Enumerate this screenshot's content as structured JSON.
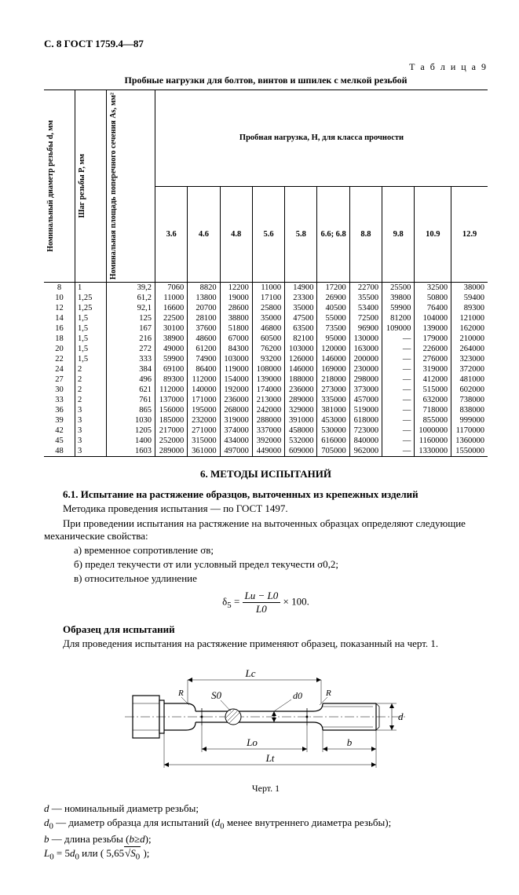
{
  "header": "С. 8 ГОСТ 1759.4—87",
  "table": {
    "label": "Т а б л и ц а  9",
    "caption": "Пробные нагрузки для болтов, винтов и шпилек с мелкой резьбой",
    "rot_headers": [
      "Номинальный диаметр резьбы d, мм",
      "Шаг резьбы P, мм",
      "Номинальная площадь поперечного сечения As, мм²"
    ],
    "group_header": "Пробная нагрузка, Н, для класса прочности",
    "classes": [
      "3.6",
      "4.6",
      "4.8",
      "5.6",
      "5.8",
      "6.6; 6.8",
      "8.8",
      "9.8",
      "10.9",
      "12.9"
    ],
    "rows": [
      {
        "d": "8",
        "p": "1",
        "a": "39,2",
        "v": [
          "7060",
          "8820",
          "12200",
          "11000",
          "14900",
          "17200",
          "22700",
          "25500",
          "32500",
          "38000"
        ]
      },
      {
        "d": "10",
        "p": "1,25",
        "a": "61,2",
        "v": [
          "11000",
          "13800",
          "19000",
          "17100",
          "23300",
          "26900",
          "35500",
          "39800",
          "50800",
          "59400"
        ]
      },
      {
        "d": "12",
        "p": "1,25",
        "a": "92,1",
        "v": [
          "16600",
          "20700",
          "28600",
          "25800",
          "35000",
          "40500",
          "53400",
          "59900",
          "76400",
          "89300"
        ]
      },
      {
        "d": "14",
        "p": "1,5",
        "a": "125",
        "v": [
          "22500",
          "28100",
          "38800",
          "35000",
          "47500",
          "55000",
          "72500",
          "81200",
          "104000",
          "121000"
        ]
      },
      {
        "d": "16",
        "p": "1,5",
        "a": "167",
        "v": [
          "30100",
          "37600",
          "51800",
          "46800",
          "63500",
          "73500",
          "96900",
          "109000",
          "139000",
          "162000"
        ]
      },
      {
        "d": "18",
        "p": "1,5",
        "a": "216",
        "v": [
          "38900",
          "48600",
          "67000",
          "60500",
          "82100",
          "95000",
          "130000",
          "—",
          "179000",
          "210000"
        ]
      },
      {
        "d": "20",
        "p": "1,5",
        "a": "272",
        "v": [
          "49000",
          "61200",
          "84300",
          "76200",
          "103000",
          "120000",
          "163000",
          "—",
          "226000",
          "264000"
        ]
      },
      {
        "d": "22",
        "p": "1,5",
        "a": "333",
        "v": [
          "59900",
          "74900",
          "103000",
          "93200",
          "126000",
          "146000",
          "200000",
          "—",
          "276000",
          "323000"
        ]
      },
      {
        "d": "24",
        "p": "2",
        "a": "384",
        "v": [
          "69100",
          "86400",
          "119000",
          "108000",
          "146000",
          "169000",
          "230000",
          "—",
          "319000",
          "372000"
        ]
      },
      {
        "d": "27",
        "p": "2",
        "a": "496",
        "v": [
          "89300",
          "112000",
          "154000",
          "139000",
          "188000",
          "218000",
          "298000",
          "—",
          "412000",
          "481000"
        ]
      },
      {
        "d": "30",
        "p": "2",
        "a": "621",
        "v": [
          "112000",
          "140000",
          "192000",
          "174000",
          "236000",
          "273000",
          "373000",
          "—",
          "515000",
          "602000"
        ]
      },
      {
        "d": "33",
        "p": "2",
        "a": "761",
        "v": [
          "137000",
          "171000",
          "236000",
          "213000",
          "289000",
          "335000",
          "457000",
          "—",
          "632000",
          "738000"
        ]
      },
      {
        "d": "36",
        "p": "3",
        "a": "865",
        "v": [
          "156000",
          "195000",
          "268000",
          "242000",
          "329000",
          "381000",
          "519000",
          "—",
          "718000",
          "838000"
        ]
      },
      {
        "d": "39",
        "p": "3",
        "a": "1030",
        "v": [
          "185000",
          "232000",
          "319000",
          "288000",
          "391000",
          "453000",
          "618000",
          "—",
          "855000",
          "999000"
        ]
      },
      {
        "d": "42",
        "p": "3",
        "a": "1205",
        "v": [
          "217000",
          "271000",
          "374000",
          "337000",
          "458000",
          "530000",
          "723000",
          "—",
          "1000000",
          "1170000"
        ]
      },
      {
        "d": "45",
        "p": "3",
        "a": "1400",
        "v": [
          "252000",
          "315000",
          "434000",
          "392000",
          "532000",
          "616000",
          "840000",
          "—",
          "1160000",
          "1360000"
        ]
      },
      {
        "d": "48",
        "p": "3",
        "a": "1603",
        "v": [
          "289000",
          "361000",
          "497000",
          "449000",
          "609000",
          "705000",
          "962000",
          "—",
          "1330000",
          "1550000"
        ]
      }
    ]
  },
  "section_title": "6. МЕТОДЫ ИСПЫТАНИЙ",
  "p61_title": "6.1. Испытание на растяжение образцов, выточенных из крепежных изделий",
  "p61_line1": "Методика проведения испытания — по ГОСТ 1497.",
  "p61_line2": "При проведении испытания на растяжение на выточенных образцах определяют следующие механические свойства:",
  "p61_a": "а) временное сопротивление σв;",
  "p61_b": "б) предел текучести σт или условный предел текучести σ0,2;",
  "p61_c": "в) относительное удлинение",
  "formula": {
    "lhs": "δ",
    "sub": "5",
    "num": "Lu − L0",
    "den": "L0",
    "tail": " × 100."
  },
  "sample_title": "Образец для испытаний",
  "sample_line": "Для проведения испытания на растяжение применяют образец, показанный на черт. 1.",
  "fig_caption": "Черт. 1",
  "fig_labels": {
    "Lc": "Lc",
    "S0": "S0",
    "Lo": "Lo",
    "b": "b",
    "Lt": "Lt",
    "d": "d",
    "d0": "d0"
  },
  "legend": {
    "d": "d — номинальный диаметр резьбы;",
    "d0_pre": "d",
    "d0_sub": "0",
    "d0_post": " — диаметр образца для испытаний (d0 менее внутреннего диаметра резьбы);",
    "b": "b — длина резьбы (b≥d);",
    "L0": "L0 = 5d0 или ( 5,65√S0 );"
  }
}
